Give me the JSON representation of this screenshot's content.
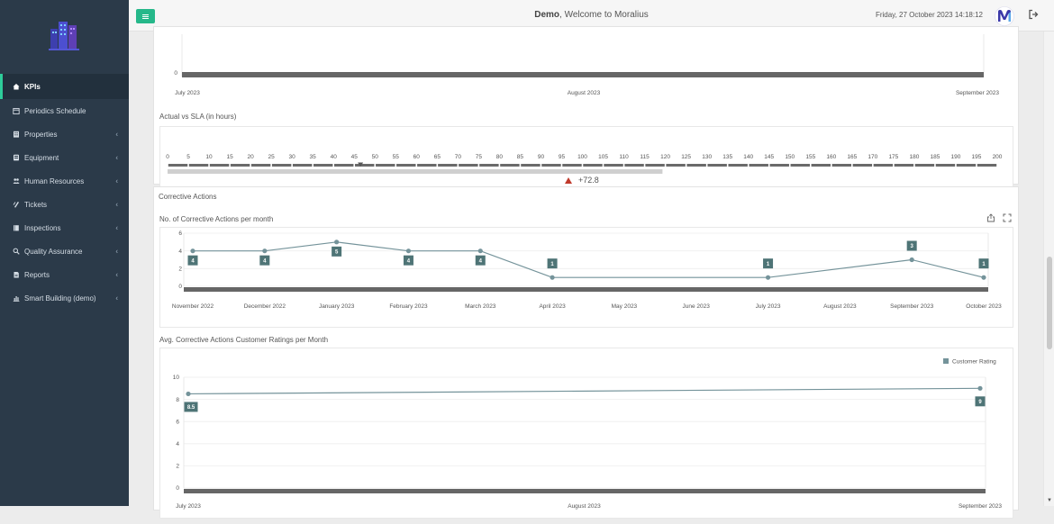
{
  "header": {
    "user": "Demo",
    "welcome": ", Welcome to Moralius",
    "datetime": "Friday, 27 October 2023 14:18:12"
  },
  "sidebar": {
    "items": [
      {
        "label": "KPIs",
        "icon": "home-icon",
        "active": true,
        "has_children": false
      },
      {
        "label": "Periodics Schedule",
        "icon": "calendar-icon",
        "active": false,
        "has_children": false
      },
      {
        "label": "Properties",
        "icon": "building-icon",
        "active": false,
        "has_children": true
      },
      {
        "label": "Equipment",
        "icon": "equipment-icon",
        "active": false,
        "has_children": true
      },
      {
        "label": "Human Resources",
        "icon": "users-icon",
        "active": false,
        "has_children": true
      },
      {
        "label": "Tickets",
        "icon": "ticket-icon",
        "active": false,
        "has_children": true
      },
      {
        "label": "Inspections",
        "icon": "book-icon",
        "active": false,
        "has_children": true
      },
      {
        "label": "Quality Assurance",
        "icon": "search-icon",
        "active": false,
        "has_children": true
      },
      {
        "label": "Reports",
        "icon": "report-icon",
        "active": false,
        "has_children": true
      },
      {
        "label": "Smart Building (demo)",
        "icon": "bar-chart-icon",
        "active": false,
        "has_children": true
      }
    ]
  },
  "top_chart": {
    "y_tick": "0",
    "x_ticks": [
      "July 2023",
      "August 2023",
      "September 2023"
    ]
  },
  "sla": {
    "title": "Actual vs SLA (in hours)",
    "ticks": [
      "0",
      "5",
      "10",
      "15",
      "20",
      "25",
      "30",
      "35",
      "40",
      "45",
      "50",
      "55",
      "60",
      "65",
      "70",
      "75",
      "80",
      "85",
      "90",
      "95",
      "100",
      "105",
      "110",
      "115",
      "120",
      "125",
      "130",
      "135",
      "140",
      "145",
      "150",
      "155",
      "160",
      "165",
      "170",
      "175",
      "180",
      "185",
      "190",
      "195",
      "200"
    ],
    "min": 0,
    "max": 200,
    "sla_value": 46.5,
    "actual_value": 119.3,
    "delta": "+72.8",
    "delta_color": "#c0392b"
  },
  "corrective": {
    "section_title": "Corrective Actions",
    "per_month_title": "No. of Corrective Actions per month",
    "export_icon": "share-icon",
    "fullscreen_icon": "expand-icon",
    "ratings_title": "Avg. Corrective Actions Customer Ratings per Month"
  },
  "chart_data": [
    {
      "type": "line",
      "title": "No. of Corrective Actions per month",
      "categories": [
        "November 2022",
        "December 2022",
        "January 2023",
        "February 2023",
        "March 2023",
        "April 2023",
        "May 2023",
        "June 2023",
        "July 2023",
        "August 2023",
        "September 2023",
        "October 2023"
      ],
      "points": [
        {
          "x": "November 2022",
          "y": 4
        },
        {
          "x": "December 2022",
          "y": 4
        },
        {
          "x": "January 2023",
          "y": 5
        },
        {
          "x": "February 2023",
          "y": 4
        },
        {
          "x": "March 2023",
          "y": 4
        },
        {
          "x": "April 2023",
          "y": 1
        },
        {
          "x": "July 2023",
          "y": 1
        },
        {
          "x": "September 2023",
          "y": 3
        },
        {
          "x": "October 2023",
          "y": 1
        }
      ],
      "y_ticks": [
        "0",
        "2",
        "4",
        "6"
      ],
      "ylim": [
        0,
        6
      ],
      "color": "#74939a",
      "label_color": "#4e7476",
      "grid": true
    },
    {
      "type": "line",
      "title": "Avg. Corrective Actions Customer Ratings per Month",
      "series": [
        {
          "name": "Customer Rating",
          "x": [
            "July 2023",
            "September 2023"
          ],
          "values": [
            8.5,
            9
          ]
        }
      ],
      "x_ticks": [
        "July 2023",
        "August 2023",
        "September 2023"
      ],
      "y_ticks": [
        "0",
        "2",
        "4",
        "6",
        "8",
        "10"
      ],
      "ylim": [
        0,
        10
      ],
      "legend": "top-right",
      "color": "#74939a",
      "label_color": "#4e7476",
      "grid": true
    }
  ]
}
